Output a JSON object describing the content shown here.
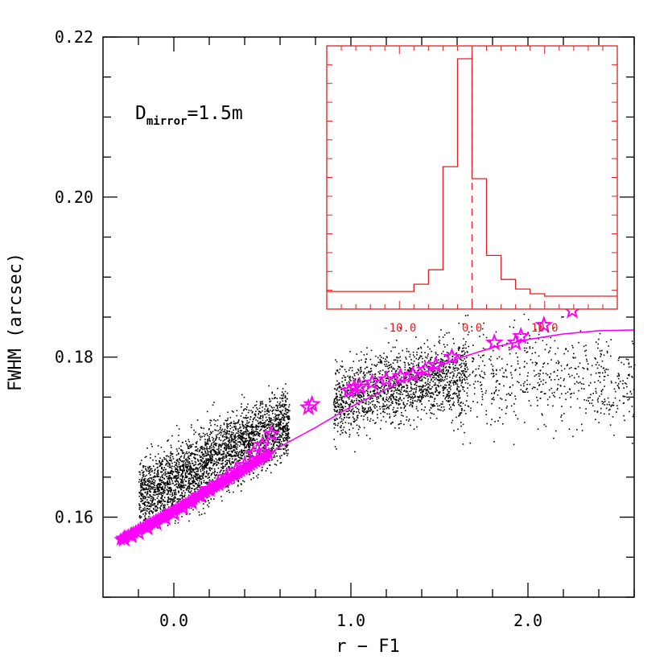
{
  "chart_data": {
    "type": "scatter",
    "xlabel": "r − F1",
    "ylabel": "FWHM (arcsec)",
    "xlim": [
      -0.4,
      2.6
    ],
    "ylim": [
      0.15,
      0.22
    ],
    "xticks": [
      0.0,
      1.0,
      2.0
    ],
    "xtick_labels": [
      "0.0",
      "1.0",
      "2.0"
    ],
    "yticks": [
      0.16,
      0.18,
      0.2,
      0.22
    ],
    "ytick_labels": [
      "0.16",
      "0.18",
      "0.20",
      "0.22"
    ],
    "annotation": {
      "main": "D",
      "subscript": "mirror",
      "rest": "=1.5m"
    },
    "scatter_cloud": {
      "description_color": "#000000",
      "trend": {
        "x": [
          -0.2,
          0.0,
          0.3,
          0.6,
          0.9,
          1.2,
          1.5,
          2.0,
          2.5
        ],
        "y": [
          0.1627,
          0.1645,
          0.1685,
          0.1715,
          0.1745,
          0.1763,
          0.1775,
          0.1778,
          0.1771
        ]
      },
      "x_range": [
        -0.25,
        2.6
      ]
    },
    "fit_line": {
      "color": "#ff00ff",
      "x": [
        -0.3,
        -0.1,
        0.0,
        0.2,
        0.4,
        0.6,
        0.8,
        1.0,
        1.2,
        1.4,
        1.6,
        1.8,
        2.0,
        2.2,
        2.4,
        2.6
      ],
      "y": [
        0.1572,
        0.1596,
        0.1608,
        0.1634,
        0.166,
        0.1688,
        0.1712,
        0.1738,
        0.176,
        0.178,
        0.1798,
        0.1812,
        0.1822,
        0.1829,
        0.1833,
        0.1834
      ]
    },
    "star_markers": {
      "color": "#ff00ff",
      "x": [
        -0.28,
        -0.24,
        -0.2,
        -0.15,
        -0.1,
        -0.05,
        0.0,
        0.05,
        0.1,
        0.15,
        0.2,
        0.25,
        0.3,
        0.35,
        0.4,
        0.45,
        0.5,
        0.55,
        0.76,
        0.78,
        0.99,
        1.02,
        1.05,
        1.12,
        1.2,
        1.28,
        1.35,
        1.42,
        1.48,
        1.57,
        1.81,
        1.93,
        1.96,
        2.09,
        2.25
      ],
      "y": [
        0.1573,
        0.1577,
        0.1581,
        0.1587,
        0.1593,
        0.1599,
        0.1605,
        0.1612,
        0.1619,
        0.1627,
        0.1635,
        0.1642,
        0.165,
        0.1658,
        0.1665,
        0.168,
        0.169,
        0.1704,
        0.1737,
        0.1741,
        0.1758,
        0.1762,
        0.1763,
        0.1768,
        0.1772,
        0.1776,
        0.1778,
        0.1784,
        0.179,
        0.18,
        0.1818,
        0.1818,
        0.1826,
        0.184,
        0.1858
      ]
    },
    "inset": {
      "type": "histogram",
      "color": "#e02020",
      "xlim": [
        -20,
        20
      ],
      "xticks": [
        -10.0,
        0.0,
        10.0
      ],
      "xtick_labels": [
        "-10.0",
        "0.0",
        "10.0"
      ],
      "reference_line_x": 0.0,
      "bin_edges": [
        -20,
        -8,
        -6,
        -4,
        -2,
        0,
        2,
        4,
        6,
        8,
        10,
        20
      ],
      "counts": [
        0.03,
        0.06,
        0.12,
        0.55,
        1.0,
        0.5,
        0.18,
        0.08,
        0.04,
        0.02,
        0.01
      ]
    }
  }
}
